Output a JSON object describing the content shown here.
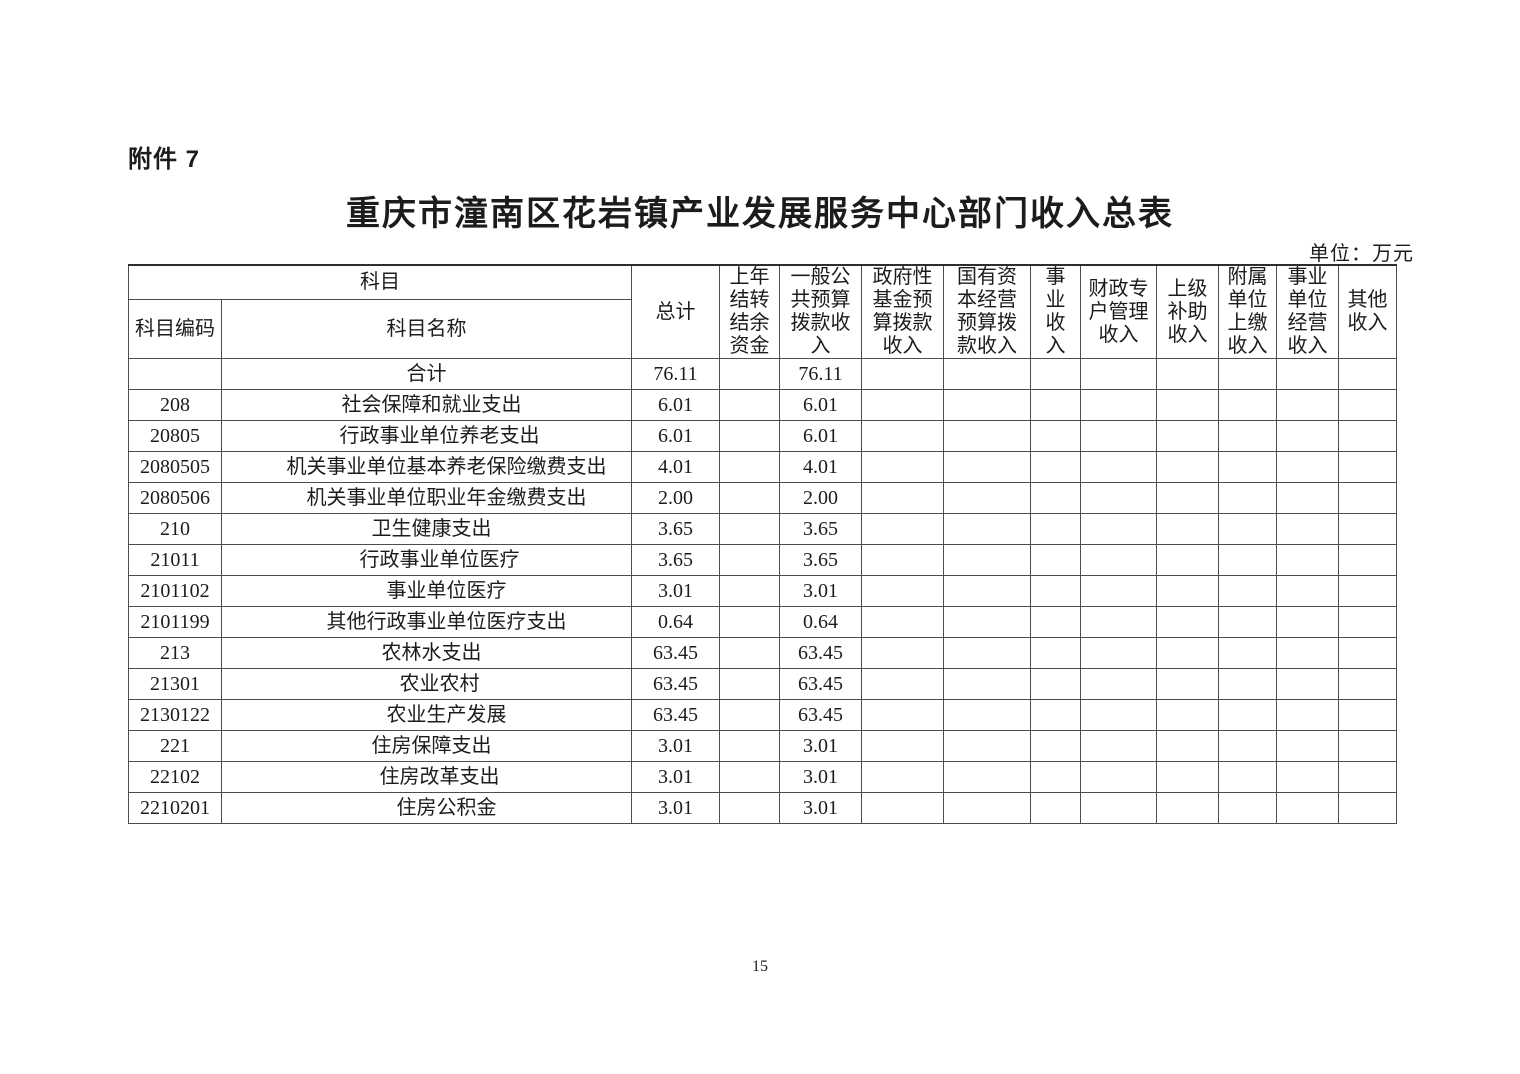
{
  "page": {
    "attachment_label": "附件 7",
    "title": "重庆市潼南区花岩镇产业发展服务中心部门收入总表",
    "unit_note": "单位：万元",
    "page_number": "15"
  },
  "table": {
    "header": {
      "subject": "科目",
      "code": "科目编码",
      "name": "科目名称",
      "columns": [
        "总计",
        "上年\n结转\n结余\n资金",
        "一般公\n共预算\n拨款收\n入",
        "政府性\n基金预\n算拨款\n收入",
        "国有资\n本经营\n预算拨\n款收入",
        "事\n业\n收\n入",
        "财政专\n户管理\n收入",
        "上级\n补助\n收入",
        "附属\n单位\n上缴\n收入",
        "事业\n单位\n经营\n收入",
        "其他\n收入"
      ]
    },
    "rows": [
      {
        "code": "",
        "name": "合计",
        "level": 0,
        "values": [
          "76.11",
          "",
          "76.11",
          "",
          "",
          "",
          "",
          "",
          "",
          "",
          ""
        ]
      },
      {
        "code": "208",
        "name": "社会保障和就业支出",
        "level": 1,
        "values": [
          "6.01",
          "",
          "6.01",
          "",
          "",
          "",
          "",
          "",
          "",
          "",
          ""
        ]
      },
      {
        "code": "20805",
        "name": "行政事业单位养老支出",
        "level": 2,
        "values": [
          "6.01",
          "",
          "6.01",
          "",
          "",
          "",
          "",
          "",
          "",
          "",
          ""
        ]
      },
      {
        "code": "2080505",
        "name": "机关事业单位基本养老保险缴费支出",
        "level": 3,
        "values": [
          "4.01",
          "",
          "4.01",
          "",
          "",
          "",
          "",
          "",
          "",
          "",
          ""
        ]
      },
      {
        "code": "2080506",
        "name": "机关事业单位职业年金缴费支出",
        "level": 3,
        "values": [
          "2.00",
          "",
          "2.00",
          "",
          "",
          "",
          "",
          "",
          "",
          "",
          ""
        ]
      },
      {
        "code": "210",
        "name": "卫生健康支出",
        "level": 1,
        "values": [
          "3.65",
          "",
          "3.65",
          "",
          "",
          "",
          "",
          "",
          "",
          "",
          ""
        ]
      },
      {
        "code": "21011",
        "name": "行政事业单位医疗",
        "level": 2,
        "values": [
          "3.65",
          "",
          "3.65",
          "",
          "",
          "",
          "",
          "",
          "",
          "",
          ""
        ]
      },
      {
        "code": "2101102",
        "name": "事业单位医疗",
        "level": 3,
        "values": [
          "3.01",
          "",
          "3.01",
          "",
          "",
          "",
          "",
          "",
          "",
          "",
          ""
        ]
      },
      {
        "code": "2101199",
        "name": "其他行政事业单位医疗支出",
        "level": 3,
        "values": [
          "0.64",
          "",
          "0.64",
          "",
          "",
          "",
          "",
          "",
          "",
          "",
          ""
        ]
      },
      {
        "code": "213",
        "name": "农林水支出",
        "level": 1,
        "values": [
          "63.45",
          "",
          "63.45",
          "",
          "",
          "",
          "",
          "",
          "",
          "",
          ""
        ]
      },
      {
        "code": "21301",
        "name": "农业农村",
        "level": 2,
        "values": [
          "63.45",
          "",
          "63.45",
          "",
          "",
          "",
          "",
          "",
          "",
          "",
          ""
        ]
      },
      {
        "code": "2130122",
        "name": "农业生产发展",
        "level": 3,
        "values": [
          "63.45",
          "",
          "63.45",
          "",
          "",
          "",
          "",
          "",
          "",
          "",
          ""
        ]
      },
      {
        "code": "221",
        "name": "住房保障支出",
        "level": 1,
        "values": [
          "3.01",
          "",
          "3.01",
          "",
          "",
          "",
          "",
          "",
          "",
          "",
          ""
        ]
      },
      {
        "code": "22102",
        "name": "住房改革支出",
        "level": 2,
        "values": [
          "3.01",
          "",
          "3.01",
          "",
          "",
          "",
          "",
          "",
          "",
          "",
          ""
        ]
      },
      {
        "code": "2210201",
        "name": "住房公积金",
        "level": 3,
        "values": [
          "3.01",
          "",
          "3.01",
          "",
          "",
          "",
          "",
          "",
          "",
          "",
          ""
        ]
      }
    ]
  },
  "colors": {
    "text": "#1c1c1c",
    "grid": "#4d4d4d",
    "background": "#ffffff"
  }
}
